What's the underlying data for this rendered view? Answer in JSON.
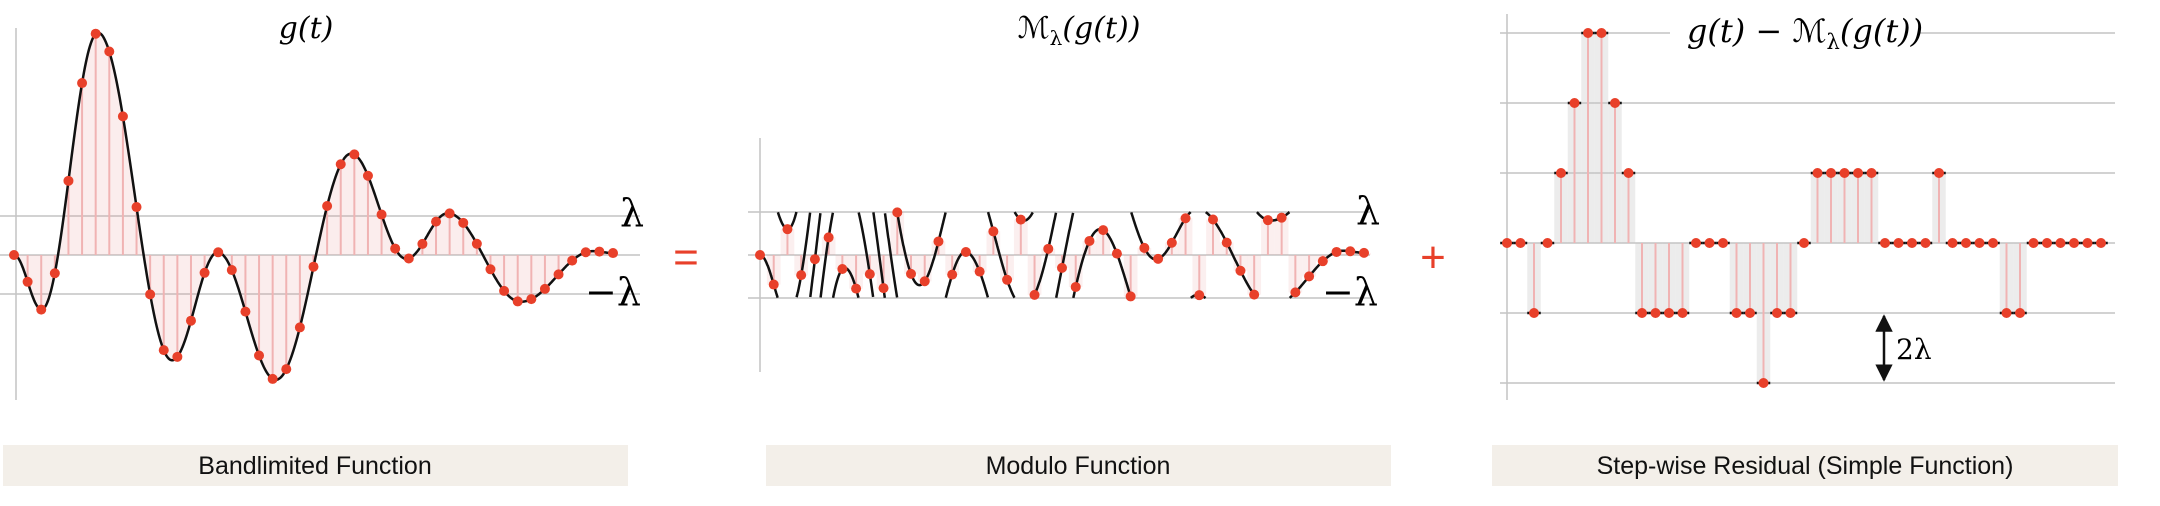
{
  "operators": [
    "=",
    "+"
  ],
  "panels": [
    {
      "title": "g(t)",
      "caption": "Bandlimited Function",
      "upper_label": "λ",
      "lower_label": "−λ"
    },
    {
      "title": {
        "symbol": "ℳ",
        "subscript": "λ",
        "argument": "(g(t))"
      },
      "caption": "Modulo Function",
      "upper_label": "λ",
      "lower_label": "−λ"
    },
    {
      "title": {
        "prefix": "g(t) − ",
        "symbol": "ℳ",
        "subscript": "λ",
        "argument": "(g(t))"
      },
      "caption": "Step-wise Residual (Simple Function)",
      "step_label": "2λ"
    }
  ]
}
